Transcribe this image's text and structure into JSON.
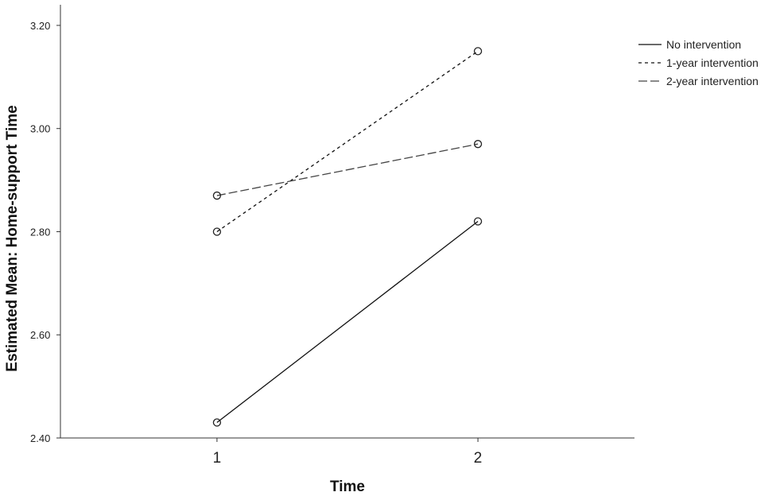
{
  "chart_data": {
    "type": "line",
    "title": "",
    "xlabel": "Time",
    "ylabel": "Estimated Mean: Home-support Time",
    "categories": [
      "1",
      "2"
    ],
    "yticks": [
      "2.40",
      "2.60",
      "2.80",
      "3.00",
      "3.20"
    ],
    "ylim": [
      2.4,
      3.24
    ],
    "xlim": [
      0.4,
      2.6
    ],
    "grid": false,
    "legend_position": "top-right outside",
    "series": [
      {
        "name": "No intervention",
        "values": [
          2.43,
          2.82
        ],
        "dash": "solid",
        "color": "#111111"
      },
      {
        "name": "1-year intervention",
        "values": [
          2.8,
          3.15
        ],
        "dash": "short-dash",
        "color": "#111111"
      },
      {
        "name": "2-year intervention",
        "values": [
          2.87,
          2.97
        ],
        "dash": "long-dash",
        "color": "#444444"
      }
    ]
  }
}
